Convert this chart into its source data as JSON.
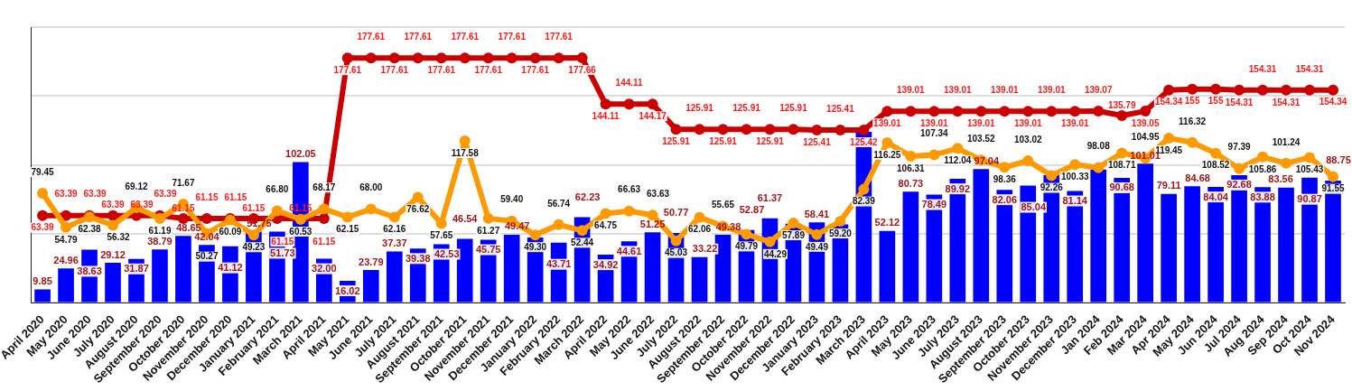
{
  "chart_data": {
    "type": "bar",
    "categories": [
      "April 2020",
      "May 2020",
      "June 2020",
      "July 2020",
      "August 2020",
      "September 2020",
      "October 2020",
      "November 2020",
      "December 2020",
      "January 2021",
      "February 2021",
      "March 2021",
      "April 2021",
      "May 2021",
      "June 2021",
      "July 2021",
      "August 2021",
      "September 2021",
      "October 2021",
      "November 2021",
      "December 2021",
      "January 2022",
      "February 2022",
      "March 2022",
      "April 2022",
      "May 2022",
      "June 2022",
      "July 2022",
      "August 2022",
      "September 2022",
      "October 2022",
      "November 2022",
      "December 2022",
      "January 2023",
      "February 2023",
      "March 2023",
      "April 2023",
      "May 2023",
      "June 2023",
      "July 2023",
      "August 2023",
      "September 2023",
      "October 2023",
      "November 2023",
      "December 2023",
      "Jan 2024",
      "Feb 2024",
      "Mar 2024",
      "Apr 2024",
      "May 2024",
      "Jun 2024",
      "Jul 2024",
      "Aug 2024",
      "Sep 2024",
      "Oct 2024",
      "Nov 2024"
    ],
    "series": [
      {
        "color": "#0000ff",
        "values": [
          9.85,
          24.96,
          38.63,
          29.12,
          31.87,
          38.79,
          48.65,
          42.04,
          41.12,
          51.75,
          51.73,
          102.05,
          32.0,
          16.02,
          23.79,
          37.37,
          39.38,
          42.53,
          46.54,
          45.75,
          49.47,
          47.5,
          43.71,
          62.23,
          34.92,
          44.61,
          51.25,
          50.77,
          33.22,
          49.38,
          52.87,
          61.37,
          57.5,
          58.41,
          57,
          124,
          52.12,
          80.73,
          78.49,
          89.92,
          97.04,
          82.06,
          85.04,
          92.7,
          81.14,
          96.78,
          90.68,
          101.01,
          79.11,
          84.68,
          84.04,
          92.68,
          83.88,
          83.56,
          90.87,
          88.75
        ],
        "value_labels": [
          "9.85",
          "24.96",
          "38.63",
          "29.12",
          "31.87",
          "38.79",
          "48.65",
          "42.04",
          "41.12",
          "51.75",
          "51.73",
          "102.05",
          "32.00",
          "16.02",
          "23.79",
          "37.37",
          "39.38",
          "42.53",
          "46.54",
          "45.75",
          "49.47",
          null,
          "43.71",
          "62.23",
          "34.92",
          "44.61",
          "51.25",
          "50.77",
          "33.22",
          "49.38",
          "52.87",
          "61.37",
          null,
          "58.41",
          null,
          null,
          "52.12",
          "80.73",
          "78.49",
          "89.92",
          "97.04",
          "82.06",
          "85.04",
          null,
          "81.14",
          null,
          "90.68",
          "101.01",
          "79.11",
          "84.68",
          "84.04",
          "92.68",
          "83.88",
          "83.56",
          "90.87",
          "88.75"
        ]
      },
      {
        "type": "line",
        "color": "#cc0000",
        "values": [
          63.39,
          63.39,
          63.39,
          63.39,
          63.39,
          63.39,
          61.15,
          61.15,
          61.15,
          61.15,
          61.15,
          61.15,
          61.15,
          177.61,
          177.61,
          177.61,
          177.61,
          177.61,
          177.61,
          177.61,
          177.61,
          177.61,
          177.61,
          177.66,
          144.11,
          144.11,
          144.17,
          125.91,
          125.91,
          125.91,
          125.91,
          125.91,
          125.91,
          125.41,
          125.41,
          125.42,
          139.01,
          139.01,
          139.01,
          139.01,
          139.01,
          139.01,
          139.01,
          139.01,
          139.01,
          139.07,
          135.79,
          139.05,
          154.34,
          155,
          155,
          154.31,
          154.31,
          154.31,
          154.31,
          154.34
        ],
        "value_labels": [
          "63.39",
          "63.39",
          "63.39",
          "63.39",
          "63.39",
          "63.39",
          "61.15",
          "61.15",
          "61.15",
          "61.15",
          "61.15",
          "61.15",
          "61.15",
          "177.61",
          "177.61",
          "177.61",
          "177.61",
          "177.61",
          "177.61",
          "177.61",
          "177.61",
          "177.61",
          "177.61",
          "177.66",
          "144.11",
          "144.11",
          "144.17",
          "125.91",
          "125.91",
          "125.91",
          "125.91",
          "125.91",
          "125.91",
          "125.41",
          "125.41",
          "125.42",
          "139.01",
          "139.01",
          "139.01",
          "139.01",
          "139.01",
          "139.01",
          "139.01",
          "139.01",
          "139.01",
          "139.07",
          "135.79",
          "139.05",
          "154.34",
          "155",
          "155",
          "154.31",
          "154.31",
          "154.31",
          "154.31",
          "154.34"
        ]
      },
      {
        "type": "line",
        "color": "#ff9900",
        "values": [
          79.45,
          54.79,
          62.38,
          56.32,
          69.12,
          61.19,
          71.67,
          50.27,
          60.09,
          49.23,
          66.8,
          60.53,
          68.17,
          62.15,
          68.0,
          62.16,
          76.62,
          57.65,
          117.58,
          61.27,
          59.4,
          49.3,
          56.74,
          52.44,
          64.75,
          66.63,
          63.63,
          45.03,
          62.06,
          55.65,
          49.79,
          44.29,
          57.89,
          49.49,
          59.2,
          82.39,
          116.25,
          106.31,
          107.34,
          112.04,
          103.52,
          98.36,
          103.02,
          92.26,
          100.33,
          98.08,
          108.71,
          104.95,
          119.45,
          116.32,
          108.52,
          97.39,
          105.86,
          101.24,
          105.43,
          91.55
        ],
        "value_labels": [
          "79.45",
          "54.79",
          "62.38",
          "56.32",
          "69.12",
          "61.19",
          "71.67",
          "50.27",
          "60.09",
          "49.23",
          "66.80",
          "60.53",
          "68.17",
          "62.15",
          "68.00",
          "62.16",
          "76.62",
          "57.65",
          "117.58",
          "61.27",
          "59.40",
          "49.30",
          "56.74",
          "52.44",
          "64.75",
          "66.63",
          "63.63",
          "45.03",
          "62.06",
          "55.65",
          "49.79",
          "44.29",
          "57.89",
          "49.49",
          "59.20",
          "82.39",
          "116.25",
          "106.31",
          "107.34",
          "112.04",
          "103.52",
          "98.36",
          "103.02",
          "92.26",
          "100.33",
          "98.08",
          "108.71",
          "104.95",
          "119.45",
          "116.32",
          "108.52",
          "97.39",
          "105.86",
          "101.24",
          "105.43",
          "91.55"
        ]
      }
    ],
    "ylim": [
      0,
      200
    ],
    "yticks": [
      {
        "value": 0,
        "label": null
      },
      {
        "value": 50,
        "label": null
      },
      {
        "value": 100,
        "label": null
      },
      {
        "value": 150,
        "label": null
      },
      {
        "value": 200,
        "label": null
      }
    ],
    "tick_labels": "x",
    "grid": "y",
    "legend": false,
    "marker": "circle",
    "line_style": "solid"
  }
}
